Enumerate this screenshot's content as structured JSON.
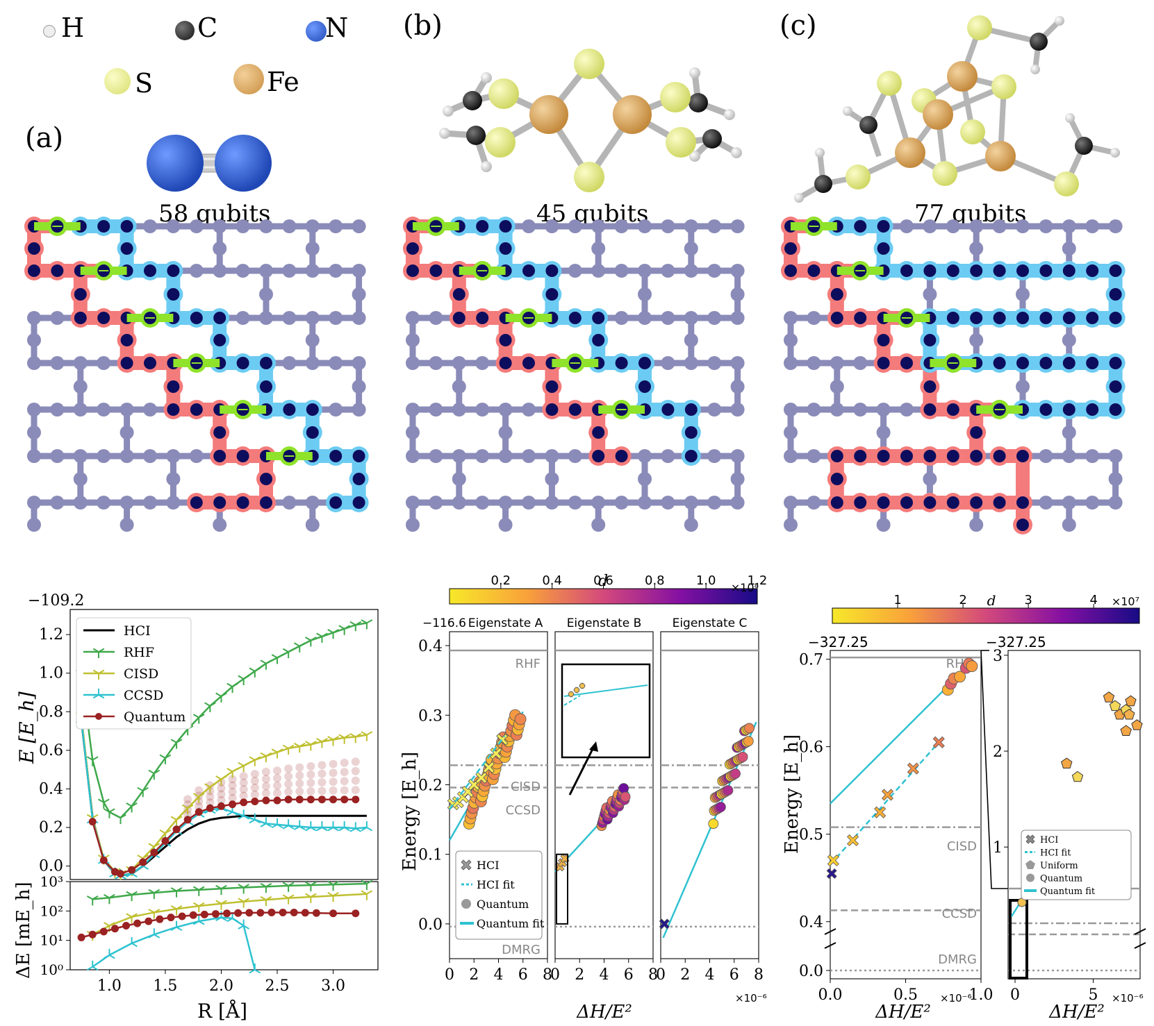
{
  "atom_legend": [
    {
      "symbol": "H",
      "color": "#e8e8e8"
    },
    {
      "symbol": "C",
      "color": "#2b2b2b"
    },
    {
      "symbol": "N",
      "color": "#2f5fd0"
    },
    {
      "symbol": "S",
      "color": "#e9ef8f"
    },
    {
      "symbol": "Fe",
      "color": "#e0aa62"
    }
  ],
  "panels": {
    "a": {
      "label": "(a)",
      "qubits": "58 qubits"
    },
    "b": {
      "label": "(b)",
      "qubits": "45 qubits"
    },
    "c": {
      "label": "(c)",
      "qubits": "77 qubits"
    }
  },
  "colors": {
    "lattice": "#8a8bb8",
    "red_path": "#f47b7b",
    "blue_path": "#6ccbf2",
    "green_link": "#8fe32a",
    "active_qubit": "#0d0d5e",
    "rhf": "#3ea84a",
    "cisd": "#bfbf30",
    "ccsd": "#2ec2d0",
    "quantum": "#9b2222",
    "hci": "#000000"
  },
  "chart_data": [
    {
      "id": "a-top",
      "type": "line",
      "offset_label": "−109.2",
      "ylabel": "E [E_h]",
      "xlim": [
        0.65,
        3.4
      ],
      "ylim": [
        -0.07,
        1.33
      ],
      "yticks": [
        "0.0",
        "0.2",
        "0.4",
        "0.6",
        "0.8",
        "1.0",
        "1.2"
      ],
      "legend": [
        "HCI",
        "RHF",
        "CISD",
        "CCSD",
        "Quantum"
      ],
      "series": [
        {
          "name": "HCI",
          "x": [
            0.75,
            0.85,
            0.95,
            1.05,
            1.1,
            1.2,
            1.3,
            1.4,
            1.5,
            1.6,
            1.7,
            1.8,
            1.9,
            2.0,
            2.2,
            2.4,
            2.6,
            2.8,
            3.0,
            3.3
          ],
          "y": [
            0.76,
            0.25,
            0.03,
            -0.04,
            -0.05,
            -0.04,
            0.0,
            0.05,
            0.1,
            0.15,
            0.19,
            0.22,
            0.24,
            0.25,
            0.26,
            0.26,
            0.26,
            0.26,
            0.26,
            0.26
          ]
        },
        {
          "name": "RHF",
          "x": [
            0.75,
            0.85,
            0.95,
            1.0,
            1.1,
            1.2,
            1.3,
            1.4,
            1.5,
            1.6,
            1.7,
            1.8,
            1.9,
            2.0,
            2.1,
            2.2,
            2.3,
            2.4,
            2.5,
            2.6,
            2.7,
            2.8,
            2.9,
            3.0,
            3.1,
            3.2,
            3.3
          ],
          "y": [
            1.0,
            0.55,
            0.33,
            0.28,
            0.25,
            0.31,
            0.39,
            0.48,
            0.56,
            0.64,
            0.71,
            0.77,
            0.83,
            0.88,
            0.93,
            0.97,
            1.01,
            1.05,
            1.08,
            1.11,
            1.14,
            1.17,
            1.19,
            1.21,
            1.23,
            1.25,
            1.26
          ]
        },
        {
          "name": "CISD",
          "x": [
            0.75,
            0.85,
            0.95,
            1.05,
            1.1,
            1.2,
            1.3,
            1.4,
            1.5,
            1.6,
            1.7,
            1.8,
            1.9,
            2.0,
            2.1,
            2.2,
            2.3,
            2.4,
            2.5,
            2.6,
            2.7,
            2.8,
            2.9,
            3.0,
            3.1,
            3.2,
            3.3
          ],
          "y": [
            0.78,
            0.25,
            0.04,
            -0.03,
            -0.04,
            -0.02,
            0.04,
            0.1,
            0.17,
            0.24,
            0.3,
            0.36,
            0.41,
            0.45,
            0.49,
            0.52,
            0.55,
            0.57,
            0.59,
            0.61,
            0.62,
            0.63,
            0.645,
            0.655,
            0.665,
            0.67,
            0.68
          ]
        },
        {
          "name": "CCSD",
          "x": [
            0.75,
            0.85,
            0.95,
            1.05,
            1.1,
            1.2,
            1.3,
            1.4,
            1.5,
            1.6,
            1.7,
            1.8,
            1.9,
            2.0,
            2.1,
            2.2,
            2.3,
            2.4,
            2.5,
            2.6,
            2.7,
            2.8,
            2.9,
            3.0,
            3.1,
            3.2,
            3.3
          ],
          "y": [
            0.76,
            0.24,
            0.03,
            -0.04,
            -0.05,
            -0.04,
            0.0,
            0.06,
            0.12,
            0.18,
            0.23,
            0.27,
            0.29,
            0.3,
            0.28,
            0.26,
            0.24,
            0.22,
            0.215,
            0.21,
            0.205,
            0.2,
            0.2,
            0.2,
            0.2,
            0.195,
            0.2
          ]
        },
        {
          "name": "Quantum",
          "x": [
            0.85,
            0.95,
            1.05,
            1.1,
            1.2,
            1.3,
            1.4,
            1.5,
            1.6,
            1.7,
            1.8,
            1.9,
            2.0,
            2.1,
            2.2,
            2.3,
            2.4,
            2.5,
            2.6,
            2.7,
            2.8,
            2.9,
            3.0,
            3.1,
            3.2
          ],
          "y": [
            0.23,
            0.03,
            -0.03,
            -0.04,
            -0.02,
            0.02,
            0.07,
            0.13,
            0.19,
            0.24,
            0.28,
            0.3,
            0.31,
            0.32,
            0.33,
            0.335,
            0.34,
            0.34,
            0.345,
            0.345,
            0.345,
            0.345,
            0.345,
            0.345,
            0.345
          ]
        }
      ]
    },
    {
      "id": "a-bottom",
      "type": "line",
      "ylabel": "ΔE [mE_h]",
      "xlabel": "R [Å]",
      "xlim": [
        0.65,
        3.4
      ],
      "ylim_log10": [
        0,
        3
      ],
      "xticks": [
        "1.0",
        "1.5",
        "2.0",
        "2.5",
        "3.0"
      ],
      "yticks": [
        "10⁰",
        "10¹",
        "10²",
        "10³"
      ],
      "series": [
        {
          "name": "RHF",
          "x": [
            0.85,
            1.0,
            1.2,
            1.4,
            1.6,
            1.8,
            2.0,
            2.2,
            2.4,
            2.6,
            2.8,
            3.0,
            3.3
          ],
          "log10y": [
            2.4,
            2.45,
            2.55,
            2.62,
            2.68,
            2.72,
            2.76,
            2.8,
            2.83,
            2.86,
            2.88,
            2.9,
            2.93
          ]
        },
        {
          "name": "CISD",
          "x": [
            0.85,
            1.0,
            1.2,
            1.4,
            1.6,
            1.8,
            2.0,
            2.2,
            2.4,
            2.6,
            2.8,
            3.0,
            3.3
          ],
          "log10y": [
            1.2,
            1.5,
            1.8,
            1.95,
            2.07,
            2.17,
            2.25,
            2.32,
            2.38,
            2.44,
            2.48,
            2.52,
            2.58
          ]
        },
        {
          "name": "CCSD",
          "x": [
            0.85,
            1.0,
            1.2,
            1.4,
            1.6,
            1.8,
            2.0,
            2.1,
            2.2,
            2.3
          ],
          "log10y": [
            0.1,
            0.5,
            0.9,
            1.2,
            1.45,
            1.65,
            1.78,
            1.75,
            1.5,
            0.0
          ]
        },
        {
          "name": "Quantum",
          "x": [
            0.75,
            0.85,
            0.95,
            1.05,
            1.15,
            1.25,
            1.35,
            1.45,
            1.55,
            1.65,
            1.75,
            1.85,
            1.95,
            2.05,
            2.15,
            2.25,
            2.35,
            2.45,
            2.55,
            2.65,
            2.75,
            2.85,
            3.0,
            3.2
          ],
          "log10y": [
            1.1,
            1.2,
            1.3,
            1.4,
            1.5,
            1.58,
            1.65,
            1.72,
            1.78,
            1.82,
            1.86,
            1.88,
            1.9,
            1.92,
            1.93,
            1.94,
            1.94,
            1.95,
            1.95,
            1.95,
            1.94,
            1.93,
            1.92,
            1.92
          ]
        }
      ]
    },
    {
      "id": "b",
      "type": "scatter",
      "offset_label": "−116.6",
      "ylabel": "Energy [E_h]",
      "xlabel": "ΔH/E²",
      "x_multiplier": "×10⁻⁶",
      "colorbar": {
        "label": "d",
        "multiplier": "×10⁸",
        "ticks": [
          "0.2",
          "0.4",
          "0.6",
          "0.8",
          "1.0",
          "1.2"
        ]
      },
      "subplots": [
        "Eigenstate A",
        "Eigenstate B",
        "Eigenstate C"
      ],
      "xticks": [
        "0",
        "2",
        "4",
        "6",
        "8"
      ],
      "yticks": [
        "0.0",
        "0.1",
        "0.2",
        "0.3",
        "0.4"
      ],
      "ref_lines": {
        "RHF": 0.393,
        "CISD": 0.228,
        "CCSD": 0.196,
        "DMRG": -0.004
      },
      "legend": [
        "HCI",
        "HCI fit",
        "Quantum",
        "Quantum fit"
      ]
    },
    {
      "id": "c",
      "type": "scatter",
      "offset_label": "−327.25",
      "ylabel": "Energy [E_h]",
      "xlabel": "ΔH/E²",
      "x_multiplier": "×10⁻⁶",
      "colorbar": {
        "label": "d",
        "multiplier": "×10⁷",
        "ticks": [
          "1",
          "2",
          "3",
          "4"
        ]
      },
      "left_xticks": [
        "0.0",
        "0.5",
        "1.0"
      ],
      "left_yticks": [
        "0.0",
        "0.4",
        "0.5",
        "0.6",
        "0.7"
      ],
      "right_xticks": [
        "0",
        "5"
      ],
      "right_yticks": [
        "1",
        "2",
        "3"
      ],
      "ref_lines": {
        "RHF": 0.702,
        "CISD": 0.508,
        "CCSD": 0.413,
        "DMRG": 0.0
      },
      "legend": [
        "HCI",
        "HCI fit",
        "Uniform",
        "Quantum",
        "Quantum fit"
      ]
    }
  ]
}
